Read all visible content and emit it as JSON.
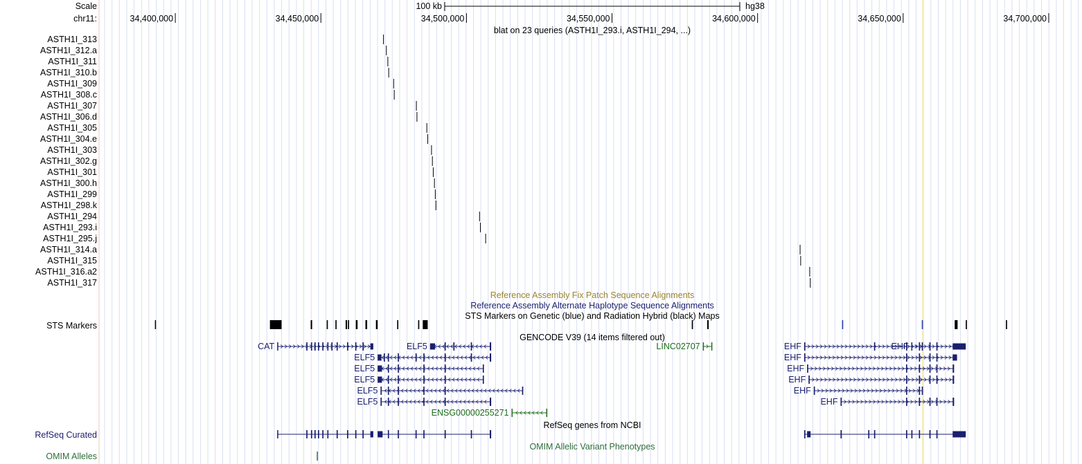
{
  "scale": {
    "label": "Scale",
    "bar_label": "100 kb",
    "assembly": "hg38"
  },
  "ruler": {
    "chrom_label": "chr11:",
    "start_bp": 34375000,
    "end_bp": 34710000,
    "ticks": [
      "34,400,000",
      "34,450,000",
      "34,500,000",
      "34,550,000",
      "34,600,000",
      "34,650,000",
      "34,700,000"
    ],
    "tick_values": [
      34400000,
      34450000,
      34500000,
      34550000,
      34600000,
      34650000,
      34700000
    ]
  },
  "highlight_bp": 34656600,
  "blat": {
    "title": "blat on 23 queries (ASTH1I_293.i, ASTH1I_294, ...)",
    "hits": [
      {
        "name": "ASTH1I_313",
        "pos": 34471500
      },
      {
        "name": "ASTH1I_312.a",
        "pos": 34472500
      },
      {
        "name": "ASTH1I_311",
        "pos": 34473000
      },
      {
        "name": "ASTH1I_310.b",
        "pos": 34473300
      },
      {
        "name": "ASTH1I_309",
        "pos": 34475000
      },
      {
        "name": "ASTH1I_308.c",
        "pos": 34475200
      },
      {
        "name": "ASTH1I_307",
        "pos": 34482800
      },
      {
        "name": "ASTH1I_306.d",
        "pos": 34483000
      },
      {
        "name": "ASTH1I_305",
        "pos": 34486400
      },
      {
        "name": "ASTH1I_304.e",
        "pos": 34486700
      },
      {
        "name": "ASTH1I_303",
        "pos": 34488000
      },
      {
        "name": "ASTH1I_302.g",
        "pos": 34488300
      },
      {
        "name": "ASTH1I_301",
        "pos": 34488600
      },
      {
        "name": "ASTH1I_300.h",
        "pos": 34489000
      },
      {
        "name": "ASTH1I_299",
        "pos": 34489300
      },
      {
        "name": "ASTH1I_298.k",
        "pos": 34489500
      },
      {
        "name": "ASTH1I_294",
        "pos": 34504500
      },
      {
        "name": "ASTH1I_293.i",
        "pos": 34504800
      },
      {
        "name": "ASTH1I_295.j",
        "pos": 34506600
      },
      {
        "name": "ASTH1I_314.a",
        "pos": 34614600
      },
      {
        "name": "ASTH1I_315",
        "pos": 34614800
      },
      {
        "name": "ASTH1I_316.a2",
        "pos": 34617900
      },
      {
        "name": "ASTH1I_317",
        "pos": 34618100
      }
    ]
  },
  "tracks": {
    "fix_patch": "Reference Assembly Fix Patch Sequence Alignments",
    "alt_haplotype": "Reference Assembly Alternate Haplotype Sequence Alignments",
    "sts_title": "STS Markers on Genetic (blue) and Radiation Hybrid (black) Maps",
    "sts_label": "STS Markers",
    "sts_markers": [
      {
        "start": 34393000,
        "end": 34393300,
        "map": "radiation hybrid"
      },
      {
        "start": 34432500,
        "end": 34436500,
        "map": "radiation hybrid"
      },
      {
        "start": 34446500,
        "end": 34447000,
        "map": "radiation hybrid"
      },
      {
        "start": 34452000,
        "end": 34452400,
        "map": "radiation hybrid"
      },
      {
        "start": 34455000,
        "end": 34455400,
        "map": "radiation hybrid"
      },
      {
        "start": 34458500,
        "end": 34459000,
        "map": "radiation hybrid"
      },
      {
        "start": 34459300,
        "end": 34459700,
        "map": "radiation hybrid"
      },
      {
        "start": 34462000,
        "end": 34462600,
        "map": "radiation hybrid"
      },
      {
        "start": 34465300,
        "end": 34465900,
        "map": "radiation hybrid"
      },
      {
        "start": 34468900,
        "end": 34469500,
        "map": "radiation hybrid"
      },
      {
        "start": 34476200,
        "end": 34476600,
        "map": "radiation hybrid"
      },
      {
        "start": 34483400,
        "end": 34483800,
        "map": "radiation hybrid"
      },
      {
        "start": 34485000,
        "end": 34486700,
        "map": "radiation hybrid"
      },
      {
        "start": 34577400,
        "end": 34577800,
        "map": "radiation hybrid"
      },
      {
        "start": 34582700,
        "end": 34583200,
        "map": "radiation hybrid"
      },
      {
        "start": 34629000,
        "end": 34629400,
        "map": "genetic"
      },
      {
        "start": 34656400,
        "end": 34656800,
        "map": "genetic"
      },
      {
        "start": 34667700,
        "end": 34668700,
        "map": "radiation hybrid"
      },
      {
        "start": 34671500,
        "end": 34671900,
        "map": "radiation hybrid"
      },
      {
        "start": 34685300,
        "end": 34685700,
        "map": "radiation hybrid"
      }
    ],
    "gencode_title": "GENCODE V39 (14 items filtered out)",
    "gencode": [
      {
        "name": "CAT",
        "start": 34435000,
        "end": 34468000,
        "strand": "+",
        "color": "#1a1f6e",
        "exons": [
          [
            34435000,
            34435300
          ],
          [
            34445000,
            34445400
          ],
          [
            34446600,
            34447000
          ],
          [
            34447800,
            34448200
          ],
          [
            34449000,
            34449400
          ],
          [
            34450500,
            34450900
          ],
          [
            34452200,
            34452600
          ],
          [
            34453600,
            34454000
          ],
          [
            34455400,
            34455800
          ],
          [
            34459000,
            34459400
          ],
          [
            34461800,
            34462200
          ],
          [
            34464300,
            34464700
          ],
          [
            34467000,
            34468000
          ]
        ]
      },
      {
        "name": "ELF5",
        "start": 34487500,
        "end": 34508500,
        "strand": "-",
        "color": "#1a1f6e",
        "exons": [
          [
            34487500,
            34489200
          ],
          [
            34492500,
            34492900
          ],
          [
            34495500,
            34495900
          ],
          [
            34501500,
            34501900
          ],
          [
            34508000,
            34508500
          ]
        ]
      },
      {
        "name": "ELF5",
        "start": 34469500,
        "end": 34508500,
        "strand": "-",
        "color": "#1a1f6e",
        "exons": [
          [
            34469500,
            34470800
          ],
          [
            34471600,
            34472000
          ],
          [
            34473000,
            34473400
          ],
          [
            34476400,
            34476800
          ],
          [
            34482500,
            34482900
          ],
          [
            34485200,
            34485600
          ],
          [
            34492500,
            34492900
          ],
          [
            34501500,
            34501900
          ],
          [
            34508000,
            34508500
          ]
        ]
      },
      {
        "name": "ELF5",
        "start": 34469500,
        "end": 34506000,
        "strand": "-",
        "color": "#1a1f6e",
        "exons": [
          [
            34469500,
            34471000
          ],
          [
            34473000,
            34473400
          ],
          [
            34476400,
            34476800
          ],
          [
            34485200,
            34485600
          ],
          [
            34492500,
            34492900
          ],
          [
            34505600,
            34506000
          ]
        ]
      },
      {
        "name": "ELF5",
        "start": 34469500,
        "end": 34506000,
        "strand": "-",
        "color": "#1a1f6e",
        "exons": [
          [
            34469500,
            34471000
          ],
          [
            34473000,
            34473400
          ],
          [
            34476400,
            34476800
          ],
          [
            34485200,
            34485600
          ],
          [
            34492500,
            34492900
          ],
          [
            34505600,
            34506000
          ]
        ]
      },
      {
        "name": "ELF5",
        "start": 34470500,
        "end": 34519500,
        "strand": "-",
        "color": "#1a1f6e",
        "exons": [
          [
            34470500,
            34470900
          ],
          [
            34473000,
            34473400
          ],
          [
            34476400,
            34476800
          ],
          [
            34485200,
            34485600
          ],
          [
            34492500,
            34492900
          ],
          [
            34519100,
            34519500
          ]
        ]
      },
      {
        "name": "ELF5",
        "start": 34470500,
        "end": 34508500,
        "strand": "-",
        "color": "#1a1f6e",
        "exons": [
          [
            34470500,
            34470900
          ],
          [
            34473000,
            34473400
          ],
          [
            34476400,
            34476800
          ],
          [
            34485200,
            34485600
          ],
          [
            34492500,
            34492900
          ],
          [
            34508000,
            34508500
          ]
        ]
      },
      {
        "name": "ENSG00000255271",
        "start": 34515500,
        "end": 34527700,
        "strand": "-",
        "color": "#1e6b1e",
        "exons": [
          [
            34515500,
            34515800
          ],
          [
            34527400,
            34527700
          ]
        ]
      },
      {
        "name": "LINC02707",
        "start": 34581200,
        "end": 34584400,
        "strand": "+",
        "color": "#1e6b1e",
        "exons": [
          [
            34581200,
            34581400
          ],
          [
            34584100,
            34584400
          ]
        ]
      },
      {
        "name": "EHF",
        "start": 34616000,
        "end": 34671500,
        "strand": "+",
        "color": "#1a1f6e",
        "exons": [
          [
            34616000,
            34616400
          ],
          [
            34640000,
            34640400
          ],
          [
            34651000,
            34651400
          ],
          [
            34655400,
            34655800
          ],
          [
            34659000,
            34659400
          ],
          [
            34661400,
            34661800
          ],
          [
            34667000,
            34671500
          ]
        ]
      },
      {
        "name": "EHF",
        "start": 34616000,
        "end": 34668500,
        "strand": "+",
        "color": "#1a1f6e",
        "exons": [
          [
            34616000,
            34616400
          ],
          [
            34651000,
            34651400
          ],
          [
            34655400,
            34655800
          ],
          [
            34659000,
            34659400
          ],
          [
            34661400,
            34661800
          ],
          [
            34667000,
            34668500
          ]
        ]
      },
      {
        "name": "EHF",
        "start": 34617000,
        "end": 34667500,
        "strand": "+",
        "color": "#1a1f6e",
        "exons": [
          [
            34617000,
            34617400
          ],
          [
            34651000,
            34651400
          ],
          [
            34655400,
            34655800
          ],
          [
            34659000,
            34659400
          ],
          [
            34661400,
            34661800
          ],
          [
            34667000,
            34667500
          ]
        ]
      },
      {
        "name": "EHF",
        "start": 34617500,
        "end": 34667500,
        "strand": "+",
        "color": "#1a1f6e",
        "exons": [
          [
            34617500,
            34617900
          ],
          [
            34651000,
            34651400
          ],
          [
            34655400,
            34655800
          ],
          [
            34659000,
            34659400
          ],
          [
            34661400,
            34661800
          ],
          [
            34667000,
            34667500
          ]
        ]
      },
      {
        "name": "EHF",
        "start": 34619300,
        "end": 34656800,
        "strand": "+",
        "color": "#1a1f6e",
        "exons": [
          [
            34619300,
            34619700
          ],
          [
            34651000,
            34651400
          ],
          [
            34655400,
            34655800
          ],
          [
            34656400,
            34656800
          ]
        ]
      },
      {
        "name": "EHF",
        "start": 34628500,
        "end": 34667500,
        "strand": "+",
        "color": "#1a1f6e",
        "exons": [
          [
            34628500,
            34628900
          ],
          [
            34651000,
            34651400
          ],
          [
            34655400,
            34655800
          ],
          [
            34659000,
            34659400
          ],
          [
            34661400,
            34661800
          ],
          [
            34667000,
            34667500
          ]
        ]
      },
      {
        "name": "EHF",
        "start": 34652800,
        "end": 34656800,
        "strand": "+",
        "color": "#1a1f6e",
        "exons": [
          [
            34652800,
            34653100
          ],
          [
            34656400,
            34656800
          ]
        ]
      }
    ],
    "refseq_title": "RefSeq genes from NCBI",
    "refseq_label": "RefSeq Curated",
    "refseq": [
      {
        "start": 34435000,
        "end": 34468000,
        "exons": [
          [
            34435000,
            34435300
          ],
          [
            34445000,
            34445400
          ],
          [
            34446600,
            34447000
          ],
          [
            34447800,
            34448200
          ],
          [
            34449000,
            34449400
          ],
          [
            34450500,
            34450900
          ],
          [
            34452200,
            34452600
          ],
          [
            34455400,
            34455800
          ],
          [
            34459000,
            34459400
          ],
          [
            34461800,
            34462200
          ],
          [
            34464300,
            34464700
          ],
          [
            34467000,
            34468000
          ]
        ]
      },
      {
        "start": 34469500,
        "end": 34508500,
        "exons": [
          [
            34469500,
            34471200
          ],
          [
            34473000,
            34473400
          ],
          [
            34476400,
            34476800
          ],
          [
            34482500,
            34482900
          ],
          [
            34485200,
            34485600
          ],
          [
            34492500,
            34492900
          ],
          [
            34501500,
            34501900
          ],
          [
            34508000,
            34508500
          ]
        ]
      },
      {
        "start": 34616000,
        "end": 34671500,
        "exons": [
          [
            34616000,
            34616400
          ],
          [
            34617000,
            34618200
          ],
          [
            34628500,
            34628900
          ],
          [
            34638000,
            34638400
          ],
          [
            34640000,
            34640400
          ],
          [
            34651000,
            34651400
          ],
          [
            34652800,
            34653200
          ],
          [
            34655400,
            34655800
          ],
          [
            34659000,
            34659400
          ],
          [
            34661400,
            34661800
          ],
          [
            34667000,
            34671500
          ]
        ]
      }
    ],
    "omim_title": "OMIM Allelic Variant Phenotypes",
    "omim_label": "OMIM Alleles",
    "omim": [
      34448600
    ]
  },
  "colors": {
    "gene_blue": "#1a1f6e",
    "noncoding_green": "#1e6b1e",
    "fix_patch_gold": "#9a8530",
    "alt_hap_blue": "#1a1f6e",
    "sts_genetic": "#2d3fb4",
    "sts_rh": "#000000",
    "omim_green": "#2e6e3a",
    "grid_blue": "#d9dff5",
    "highlight": "#f6edb0",
    "sidebar_border": "#f2c9b8"
  }
}
